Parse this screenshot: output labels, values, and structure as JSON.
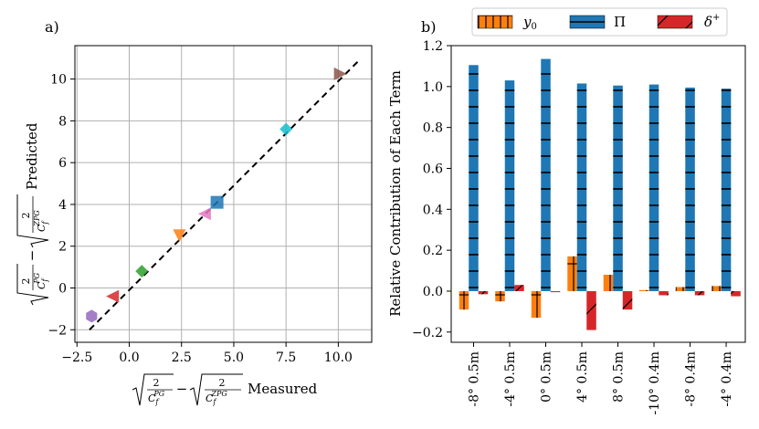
{
  "chart_data": [
    {
      "type": "scatter",
      "panel_label": "a)",
      "xlabel_measured": "Measured",
      "ylabel_predicted": "Predicted",
      "xlabel_math": {
        "two": "2",
        "cf": "C",
        "cf_sub": "f",
        "pg_sup": "PG",
        "zpg_sup": "ZPG",
        "minus": "−"
      },
      "xlim": [
        -2.6,
        11.6
      ],
      "ylim": [
        -2.6,
        11.6
      ],
      "xticks": [
        -2.5,
        0.0,
        2.5,
        5.0,
        7.5,
        10.0
      ],
      "xtick_labels": [
        "−2.5",
        "0.0",
        "2.5",
        "5.0",
        "7.5",
        "10.0"
      ],
      "yticks": [
        -2,
        0,
        2,
        4,
        6,
        8,
        10
      ],
      "ytick_labels": [
        "−2",
        "0",
        "2",
        "4",
        "6",
        "8",
        "10"
      ],
      "grid": true,
      "reference_line": {
        "style": "dashed",
        "x": [
          -1.9,
          11.0
        ],
        "y": [
          -2.0,
          10.9
        ]
      },
      "points": [
        {
          "x": -1.8,
          "y": -1.35,
          "color": "#9467bd",
          "marker": "hexagon"
        },
        {
          "x": -0.8,
          "y": -0.4,
          "color": "#d62728",
          "marker": "triangle-left"
        },
        {
          "x": 0.6,
          "y": 0.8,
          "color": "#2ca02c",
          "marker": "diamond"
        },
        {
          "x": 2.4,
          "y": 2.5,
          "color": "#ff7f0e",
          "marker": "triangle-down"
        },
        {
          "x": 3.6,
          "y": 3.55,
          "color": "#e377c2",
          "marker": "triangle-left"
        },
        {
          "x": 4.2,
          "y": 4.1,
          "color": "#1f77b4",
          "marker": "square"
        },
        {
          "x": 7.5,
          "y": 7.6,
          "color": "#17becf",
          "marker": "diamond"
        },
        {
          "x": 10.1,
          "y": 10.25,
          "color": "#8c564b",
          "marker": "triangle-right"
        }
      ]
    },
    {
      "type": "bar",
      "panel_label": "b)",
      "ylabel": "Relative Contribution of Each Term",
      "ylim": [
        -0.25,
        1.2
      ],
      "yticks": [
        -0.2,
        0.0,
        0.2,
        0.4,
        0.6,
        0.8,
        1.0,
        1.2
      ],
      "ytick_labels": [
        "−0.2",
        "0.0",
        "0.2",
        "0.4",
        "0.6",
        "0.8",
        "1.0",
        "1.2"
      ],
      "categories": [
        "-8° 0.5m",
        "-4° 0.5m",
        "0° 0.5m",
        "4° 0.5m",
        "8° 0.5m",
        "-10° 0.4m",
        "-8° 0.4m",
        "-4° 0.4m"
      ],
      "series": [
        {
          "name": "y",
          "sub": "0",
          "color": "#ff7f0e",
          "hatch": "plus",
          "values": [
            -0.09,
            -0.05,
            -0.13,
            0.17,
            0.08,
            0.005,
            0.02,
            0.025
          ]
        },
        {
          "name": "Π",
          "color": "#1f77b4",
          "hatch": "dash",
          "values": [
            1.105,
            1.03,
            1.135,
            1.015,
            1.005,
            1.01,
            0.995,
            0.99
          ]
        },
        {
          "name": "δ",
          "sup": "+",
          "color": "#d62728",
          "hatch": "slash",
          "values": [
            -0.015,
            0.03,
            -0.005,
            -0.19,
            -0.09,
            -0.02,
            -0.02,
            -0.025
          ]
        }
      ]
    }
  ]
}
